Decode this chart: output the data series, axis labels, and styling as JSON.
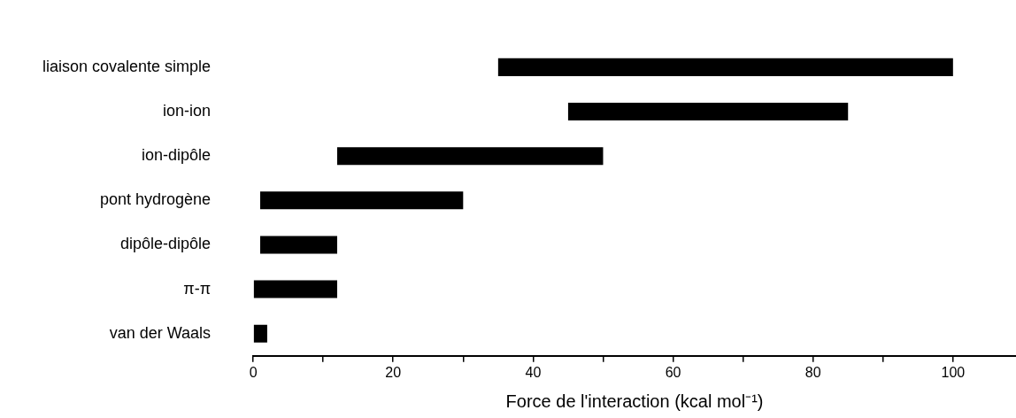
{
  "chart_data": {
    "type": "bar",
    "orientation": "horizontal",
    "xlabel": "Force de l'interaction (kcal mol⁻¹)",
    "categories": [
      "liaison covalente simple",
      "ion-ion",
      "ion-dipôle",
      "pont hydrogène",
      "dipôle-dipôle",
      "π-π",
      "van der Waals"
    ],
    "base": [
      35,
      45,
      12,
      1,
      1,
      0,
      0
    ],
    "values": [
      65,
      40,
      38,
      29,
      11,
      12,
      2
    ],
    "color": "#000000",
    "xlim": [
      0,
      109
    ],
    "xticks": [
      0,
      {
        "value": 10,
        "label": null
      },
      20,
      {
        "value": 30,
        "label": null
      },
      40,
      {
        "value": 50,
        "label": null
      },
      60,
      {
        "value": 70,
        "label": null
      },
      80,
      {
        "value": 90,
        "label": null
      },
      100
    ],
    "grid": false,
    "legend": false
  }
}
